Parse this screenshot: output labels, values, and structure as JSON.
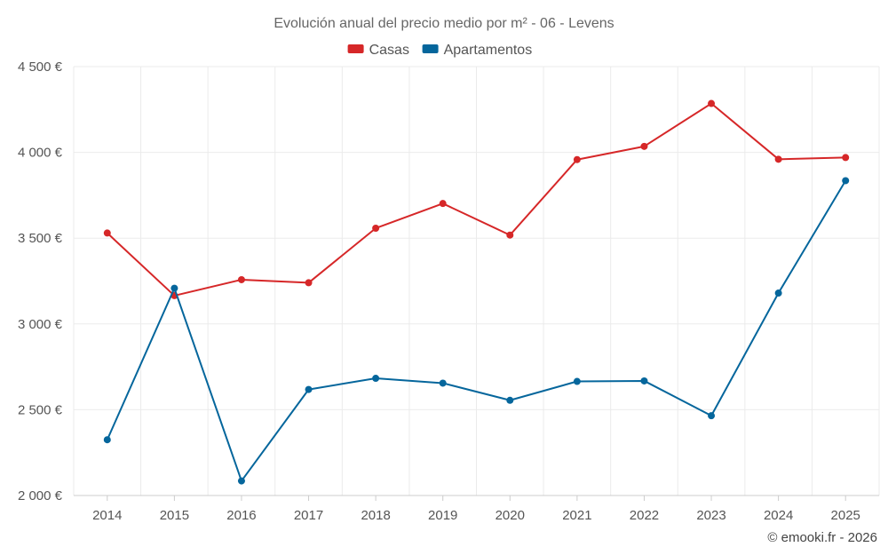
{
  "chart_data": {
    "type": "line",
    "title": "Evolución anual del precio medio por m² - 06 - Levens",
    "categories": [
      "2014",
      "2015",
      "2016",
      "2017",
      "2018",
      "2019",
      "2020",
      "2021",
      "2022",
      "2023",
      "2024",
      "2025"
    ],
    "series": [
      {
        "name": "Casas",
        "color": "#d62728",
        "values": [
          3530,
          3165,
          3258,
          3240,
          3558,
          3702,
          3518,
          3958,
          4035,
          4285,
          3960,
          3970
        ]
      },
      {
        "name": "Apartamentos",
        "color": "#05669c",
        "values": [
          2325,
          3208,
          2085,
          2618,
          2683,
          2655,
          2555,
          2665,
          2668,
          2465,
          3180,
          3835
        ]
      }
    ],
    "ylim": [
      2000,
      4500
    ],
    "yticks": [
      2000,
      2500,
      3000,
      3500,
      4000,
      4500
    ],
    "ytick_labels": [
      "2 000 €",
      "2 500 €",
      "3 000 €",
      "3 500 €",
      "4 000 €",
      "4 500 €"
    ],
    "xlabel": "",
    "ylabel": "",
    "grid": true,
    "legend_position": "top-center"
  },
  "credit": "© emooki.fr - 2026"
}
